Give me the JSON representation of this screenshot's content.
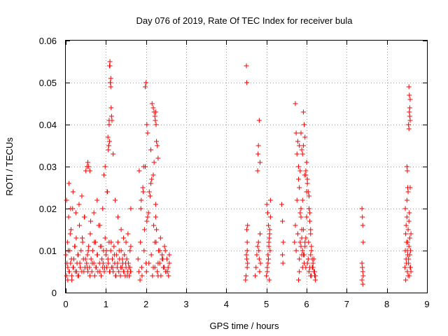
{
  "chart_data": {
    "type": "scatter",
    "title": "Day 076 of 2019, Rate Of TEC Index for receiver bula",
    "xlabel": "GPS time / hours",
    "ylabel": "ROTI / TECUs",
    "xlim": [
      0,
      9
    ],
    "ylim": [
      0,
      0.06
    ],
    "xticks": [
      0,
      1,
      2,
      3,
      4,
      5,
      6,
      7,
      8,
      9
    ],
    "xtick_labels": [
      "0",
      "1",
      "2",
      "3",
      "4",
      "5",
      "6",
      "7",
      "8",
      "9"
    ],
    "yticks": [
      0,
      0.01,
      0.02,
      0.03,
      0.04,
      0.05,
      0.06
    ],
    "ytick_labels": [
      "0",
      "0.01",
      "0.02",
      "0.03",
      "0.04",
      "0.05",
      "0.06"
    ],
    "grid": true,
    "marker": "+",
    "color": "#ff0000",
    "series": [
      {
        "name": "ROTI",
        "x": [
          0.0,
          0.02,
          0.04,
          0.05,
          0.07,
          0.08,
          0.1,
          0.12,
          0.13,
          0.15,
          0.17,
          0.18,
          0.2,
          0.22,
          0.24,
          0.26,
          0.28,
          0.3,
          0.32,
          0.34,
          0.36,
          0.38,
          0.4,
          0.42,
          0.44,
          0.46,
          0.48,
          0.5,
          0.52,
          0.54,
          0.55,
          0.57,
          0.59,
          0.61,
          0.63,
          0.65,
          0.67,
          0.7,
          0.72,
          0.74,
          0.76,
          0.78,
          0.8,
          0.82,
          0.84,
          0.86,
          0.88,
          0.9,
          0.92,
          0.94,
          0.96,
          0.98,
          1.0,
          1.02,
          1.04,
          1.06,
          1.08,
          1.1,
          1.12,
          1.14,
          1.16,
          1.18,
          1.2,
          1.22,
          1.24,
          1.26,
          1.28,
          1.3,
          1.32,
          1.34,
          1.36,
          1.38,
          1.4,
          1.42,
          1.44,
          1.46,
          1.48,
          1.5,
          1.52,
          1.54,
          1.56,
          1.58,
          1.6,
          1.62,
          0.03,
          0.06,
          0.09,
          0.11,
          0.14,
          0.19,
          0.23,
          0.27,
          0.31,
          0.35,
          0.41,
          0.45,
          0.49,
          0.53,
          0.56,
          0.6,
          0.66,
          0.71,
          0.75,
          0.79,
          0.85,
          0.89,
          0.93,
          0.97,
          1.01,
          1.05,
          1.09,
          1.13,
          1.17,
          1.21,
          1.25,
          1.29,
          1.33,
          1.37,
          1.41,
          1.45,
          1.49,
          1.53,
          1.57,
          1.61,
          0.02,
          0.08,
          0.12,
          0.18,
          0.25,
          0.33,
          0.4,
          0.47,
          0.53,
          0.62,
          0.7,
          0.78,
          0.85,
          0.92,
          0.98,
          1.03,
          1.07,
          1.08,
          1.09,
          1.1,
          1.11,
          1.12,
          1.13,
          1.15,
          1.18,
          1.23,
          1.3,
          1.38,
          1.44,
          1.5,
          1.55,
          1.6,
          1.62,
          0.05,
          0.15,
          0.3,
          0.55,
          0.57,
          0.6,
          0.95,
          1.05,
          1.06,
          1.07,
          1.08,
          1.09,
          1.1,
          1.11,
          1.12,
          1.14,
          1.62,
          1.8,
          1.83,
          1.86,
          1.89,
          1.92,
          1.95,
          1.98,
          2.01,
          2.04,
          2.07,
          2.1,
          2.13,
          2.16,
          2.19,
          2.22,
          2.25,
          2.28,
          2.31,
          2.34,
          2.37,
          2.4,
          2.43,
          2.46,
          2.49,
          2.52,
          2.55,
          2.58,
          1.82,
          1.88,
          1.94,
          2.0,
          2.06,
          2.12,
          2.18,
          2.24,
          2.3,
          2.36,
          2.42,
          2.48,
          2.54,
          2.58,
          1.85,
          1.9,
          1.96,
          2.02,
          2.08,
          2.14,
          2.18,
          2.2,
          2.22,
          2.24,
          2.26,
          2.3,
          2.34,
          2.4,
          2.45,
          2.5,
          2.56,
          1.87,
          1.93,
          1.98,
          2.0,
          2.02,
          2.04,
          2.12,
          2.15,
          2.18,
          2.2,
          2.22,
          2.23,
          2.24,
          2.25,
          2.26,
          2.28,
          2.3,
          4.48,
          4.49,
          4.5,
          4.51,
          4.52,
          4.53,
          4.5,
          4.51,
          4.52,
          4.53,
          4.51,
          4.52,
          4.72,
          4.74,
          4.76,
          4.78,
          4.8,
          4.82,
          4.84,
          4.78,
          4.79,
          4.8,
          4.81,
          4.82,
          4.83,
          4.84,
          4.85,
          5.0,
          5.02,
          5.04,
          5.06,
          5.08,
          5.1,
          5.01,
          5.03,
          5.05,
          5.07,
          5.09,
          5.02,
          5.04,
          5.06,
          5.08,
          5.1,
          5.05,
          5.07,
          5.38,
          5.4,
          5.42,
          5.4,
          5.41,
          5.7,
          5.72,
          5.74,
          5.76,
          5.78,
          5.8,
          5.82,
          5.84,
          5.86,
          5.88,
          5.9,
          5.92,
          5.94,
          5.96,
          5.98,
          6.0,
          6.02,
          6.04,
          6.06,
          6.08,
          6.1,
          6.12,
          6.14,
          6.16,
          6.18,
          6.2,
          6.22,
          5.72,
          5.76,
          5.8,
          5.84,
          5.88,
          5.92,
          5.96,
          6.0,
          6.04,
          6.08,
          6.12,
          6.16,
          6.2,
          5.74,
          5.78,
          5.82,
          5.86,
          5.9,
          5.94,
          5.98,
          6.02,
          6.06,
          6.1,
          6.14,
          6.18,
          6.22,
          5.8,
          5.82,
          5.84,
          5.86,
          5.88,
          5.9,
          5.92,
          5.94,
          5.96,
          5.98,
          6.0,
          6.05,
          6.1,
          6.12,
          6.15,
          5.82,
          5.86,
          5.88,
          5.9,
          5.92,
          5.95,
          5.98,
          6.02,
          6.06,
          6.08,
          6.1,
          7.38,
          7.39,
          7.4,
          7.41,
          7.38,
          7.39,
          7.4,
          7.41,
          7.38,
          7.4,
          8.45,
          8.46,
          8.47,
          8.48,
          8.49,
          8.5,
          8.51,
          8.52,
          8.53,
          8.54,
          8.55,
          8.56,
          8.57,
          8.58,
          8.59,
          8.6,
          8.46,
          8.48,
          8.5,
          8.52,
          8.54,
          8.56,
          8.58,
          8.6,
          8.47,
          8.49,
          8.51,
          8.53,
          8.55,
          8.57,
          8.59,
          8.5,
          8.52,
          8.54,
          8.56,
          8.58,
          8.51,
          8.53,
          8.55,
          8.57,
          8.55,
          8.56,
          8.57,
          8.58
        ],
        "y": [
          0.009,
          0.004,
          0.012,
          0.006,
          0.018,
          0.005,
          0.01,
          0.007,
          0.015,
          0.004,
          0.02,
          0.006,
          0.008,
          0.011,
          0.005,
          0.013,
          0.007,
          0.009,
          0.004,
          0.016,
          0.006,
          0.01,
          0.005,
          0.012,
          0.008,
          0.018,
          0.006,
          0.029,
          0.007,
          0.009,
          0.005,
          0.011,
          0.006,
          0.014,
          0.008,
          0.005,
          0.01,
          0.007,
          0.004,
          0.012,
          0.006,
          0.009,
          0.005,
          0.016,
          0.007,
          0.011,
          0.004,
          0.008,
          0.006,
          0.01,
          0.005,
          0.013,
          0.009,
          0.006,
          0.024,
          0.007,
          0.012,
          0.005,
          0.01,
          0.006,
          0.008,
          0.005,
          0.011,
          0.007,
          0.004,
          0.009,
          0.006,
          0.012,
          0.005,
          0.008,
          0.004,
          0.01,
          0.006,
          0.007,
          0.005,
          0.009,
          0.004,
          0.006,
          0.008,
          0.005,
          0.007,
          0.004,
          0.006,
          0.005,
          0.007,
          0.01,
          0.005,
          0.014,
          0.008,
          0.006,
          0.011,
          0.005,
          0.009,
          0.007,
          0.013,
          0.005,
          0.008,
          0.006,
          0.01,
          0.004,
          0.007,
          0.012,
          0.006,
          0.009,
          0.005,
          0.011,
          0.007,
          0.006,
          0.01,
          0.008,
          0.005,
          0.012,
          0.006,
          0.009,
          0.004,
          0.007,
          0.01,
          0.006,
          0.008,
          0.005,
          0.007,
          0.004,
          0.006,
          0.005,
          0.022,
          0.026,
          0.02,
          0.024,
          0.019,
          0.021,
          0.023,
          0.018,
          0.03,
          0.017,
          0.019,
          0.022,
          0.016,
          0.02,
          0.03,
          0.024,
          0.035,
          0.041,
          0.036,
          0.054,
          0.05,
          0.049,
          0.044,
          0.041,
          0.033,
          0.022,
          0.018,
          0.015,
          0.013,
          0.012,
          0.014,
          0.01,
          0.011,
          0.003,
          0.003,
          0.004,
          0.031,
          0.03,
          0.029,
          0.028,
          0.037,
          0.034,
          0.035,
          0.04,
          0.054,
          0.055,
          0.05,
          0.051,
          0.042,
          0.02,
          0.008,
          0.029,
          0.012,
          0.006,
          0.025,
          0.01,
          0.03,
          0.005,
          0.018,
          0.007,
          0.023,
          0.009,
          0.004,
          0.016,
          0.006,
          0.012,
          0.005,
          0.01,
          0.007,
          0.004,
          0.009,
          0.006,
          0.011,
          0.005,
          0.008,
          0.006,
          0.009,
          0.005,
          0.022,
          0.03,
          0.007,
          0.019,
          0.026,
          0.006,
          0.021,
          0.004,
          0.013,
          0.008,
          0.01,
          0.005,
          0.007,
          0.003,
          0.004,
          0.015,
          0.017,
          0.024,
          0.027,
          0.028,
          0.031,
          0.012,
          0.018,
          0.015,
          0.007,
          0.01,
          0.008,
          0.006,
          0.005,
          0.004,
          0.02,
          0.024,
          0.049,
          0.05,
          0.04,
          0.038,
          0.034,
          0.045,
          0.044,
          0.043,
          0.042,
          0.041,
          0.043,
          0.04,
          0.036,
          0.035,
          0.032,
          0.003,
          0.004,
          0.009,
          0.015,
          0.012,
          0.016,
          0.054,
          0.05,
          0.006,
          0.007,
          0.008,
          0.01,
          0.004,
          0.006,
          0.009,
          0.011,
          0.035,
          0.041,
          0.031,
          0.029,
          0.033,
          0.012,
          0.01,
          0.008,
          0.005,
          0.014,
          0.007,
          0.004,
          0.006,
          0.009,
          0.012,
          0.015,
          0.018,
          0.021,
          0.019,
          0.016,
          0.013,
          0.01,
          0.005,
          0.007,
          0.011,
          0.014,
          0.022,
          0.008,
          0.003,
          0.021,
          0.017,
          0.012,
          0.009,
          0.007,
          0.012,
          0.045,
          0.038,
          0.033,
          0.036,
          0.03,
          0.025,
          0.029,
          0.02,
          0.015,
          0.01,
          0.043,
          0.04,
          0.037,
          0.028,
          0.031,
          0.026,
          0.024,
          0.02,
          0.017,
          0.014,
          0.011,
          0.008,
          0.006,
          0.005,
          0.004,
          0.003,
          0.016,
          0.022,
          0.027,
          0.019,
          0.013,
          0.009,
          0.012,
          0.018,
          0.008,
          0.006,
          0.01,
          0.007,
          0.005,
          0.01,
          0.014,
          0.008,
          0.011,
          0.006,
          0.009,
          0.013,
          0.007,
          0.005,
          0.004,
          0.006,
          0.008,
          0.004,
          0.003,
          0.005,
          0.012,
          0.018,
          0.009,
          0.022,
          0.015,
          0.007,
          0.011,
          0.006,
          0.024,
          0.012,
          0.009,
          0.004,
          0.006,
          0.035,
          0.038,
          0.034,
          0.033,
          0.035,
          0.028,
          0.029,
          0.027,
          0.023,
          0.019,
          0.015,
          0.02,
          0.018,
          0.016,
          0.012,
          0.007,
          0.006,
          0.005,
          0.004,
          0.003,
          0.002,
          0.006,
          0.01,
          0.014,
          0.008,
          0.012,
          0.018,
          0.005,
          0.009,
          0.015,
          0.007,
          0.011,
          0.004,
          0.013,
          0.006,
          0.01,
          0.005,
          0.02,
          0.016,
          0.022,
          0.012,
          0.008,
          0.019,
          0.025,
          0.014,
          0.003,
          0.007,
          0.01,
          0.004,
          0.017,
          0.009,
          0.006,
          0.03,
          0.025,
          0.04,
          0.043,
          0.041,
          0.029,
          0.024,
          0.039,
          0.042,
          0.049,
          0.047,
          0.044,
          0.046
        ]
      }
    ]
  }
}
